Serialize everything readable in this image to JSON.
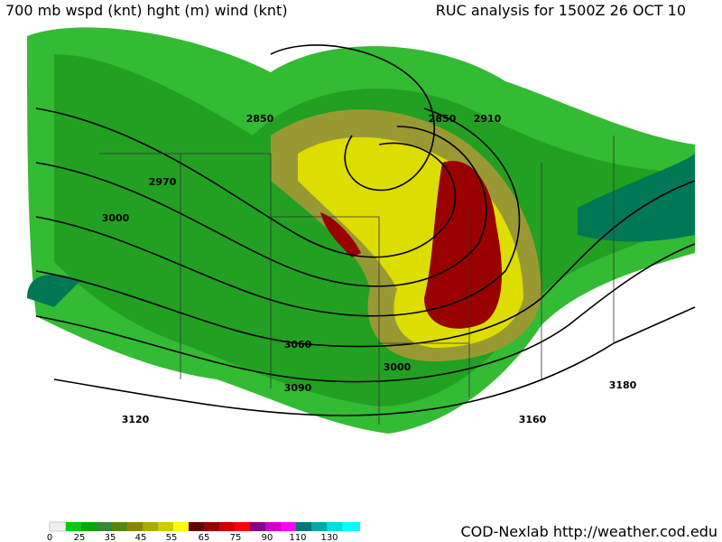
{
  "header": {
    "left": "700 mb wspd (knt) hght (m) wind (knt)",
    "right": "RUC analysis for 1500Z 26 OCT 10"
  },
  "contour_labels": [
    "2850",
    "2910",
    "2850",
    "2970",
    "3000",
    "3060",
    "3000",
    "3090",
    "3120",
    "3160",
    "3180"
  ],
  "colorbar": {
    "labels": [
      "0",
      "25",
      "35",
      "45",
      "55",
      "65",
      "75",
      "90",
      "110",
      "130"
    ]
  },
  "footer": "COD-Nexlab http://weather.cod.edu"
}
